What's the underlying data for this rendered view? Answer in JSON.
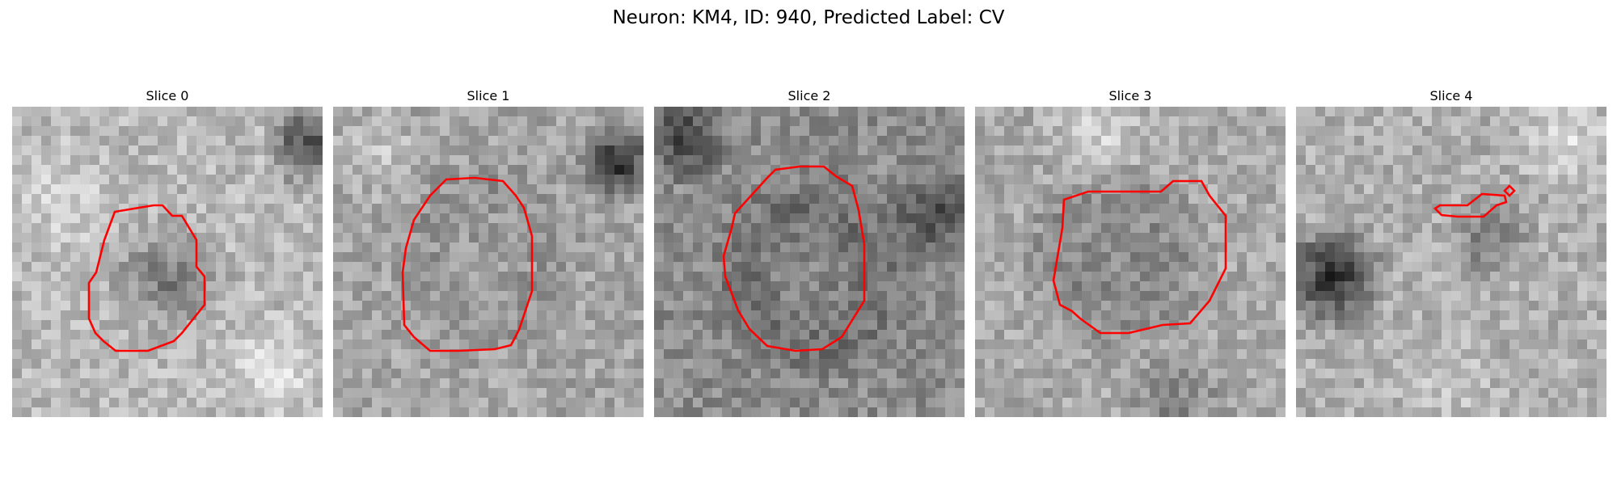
{
  "figure": {
    "title": "Neuron: KM4, ID: 940, Predicted Label: CV",
    "panels": [
      {
        "title": "Slice 0"
      },
      {
        "title": "Slice 1"
      },
      {
        "title": "Slice 2"
      },
      {
        "title": "Slice 3"
      },
      {
        "title": "Slice 4"
      }
    ],
    "contour_color": "#ff0000",
    "image_colormap": "grayscale"
  }
}
